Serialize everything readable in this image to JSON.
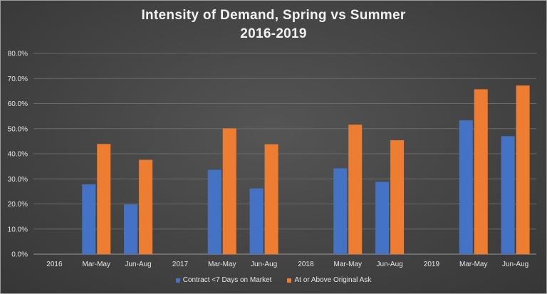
{
  "chart_data": {
    "type": "bar",
    "title_line1": "Intensity of Demand, Spring vs Summer",
    "title_line2": "2016-2019",
    "categories": [
      "2016",
      "Mar-May",
      "Jun-Aug",
      "2017",
      "Mar-May",
      "Jun-Aug",
      "2018",
      "Mar-May",
      "Jun-Aug",
      "2019",
      "Mar-May",
      "Jun-Aug"
    ],
    "series": [
      {
        "name": "Contract <7 Days on Market",
        "color": "#4472c4",
        "values": [
          null,
          27.8,
          19.8,
          null,
          33.6,
          26.2,
          null,
          34.2,
          28.8,
          null,
          53.3,
          47.0
        ]
      },
      {
        "name": "At or Above Original Ask",
        "color": "#ed7d31",
        "values": [
          null,
          43.9,
          37.6,
          null,
          50.1,
          43.8,
          null,
          51.6,
          45.4,
          null,
          65.7,
          67.2
        ]
      }
    ],
    "ylim": [
      0,
      80
    ],
    "yticks": [
      "0.0%",
      "10.0%",
      "20.0%",
      "30.0%",
      "40.0%",
      "50.0%",
      "60.0%",
      "70.0%",
      "80.0%"
    ],
    "grid": true,
    "legend_position": "bottom"
  }
}
